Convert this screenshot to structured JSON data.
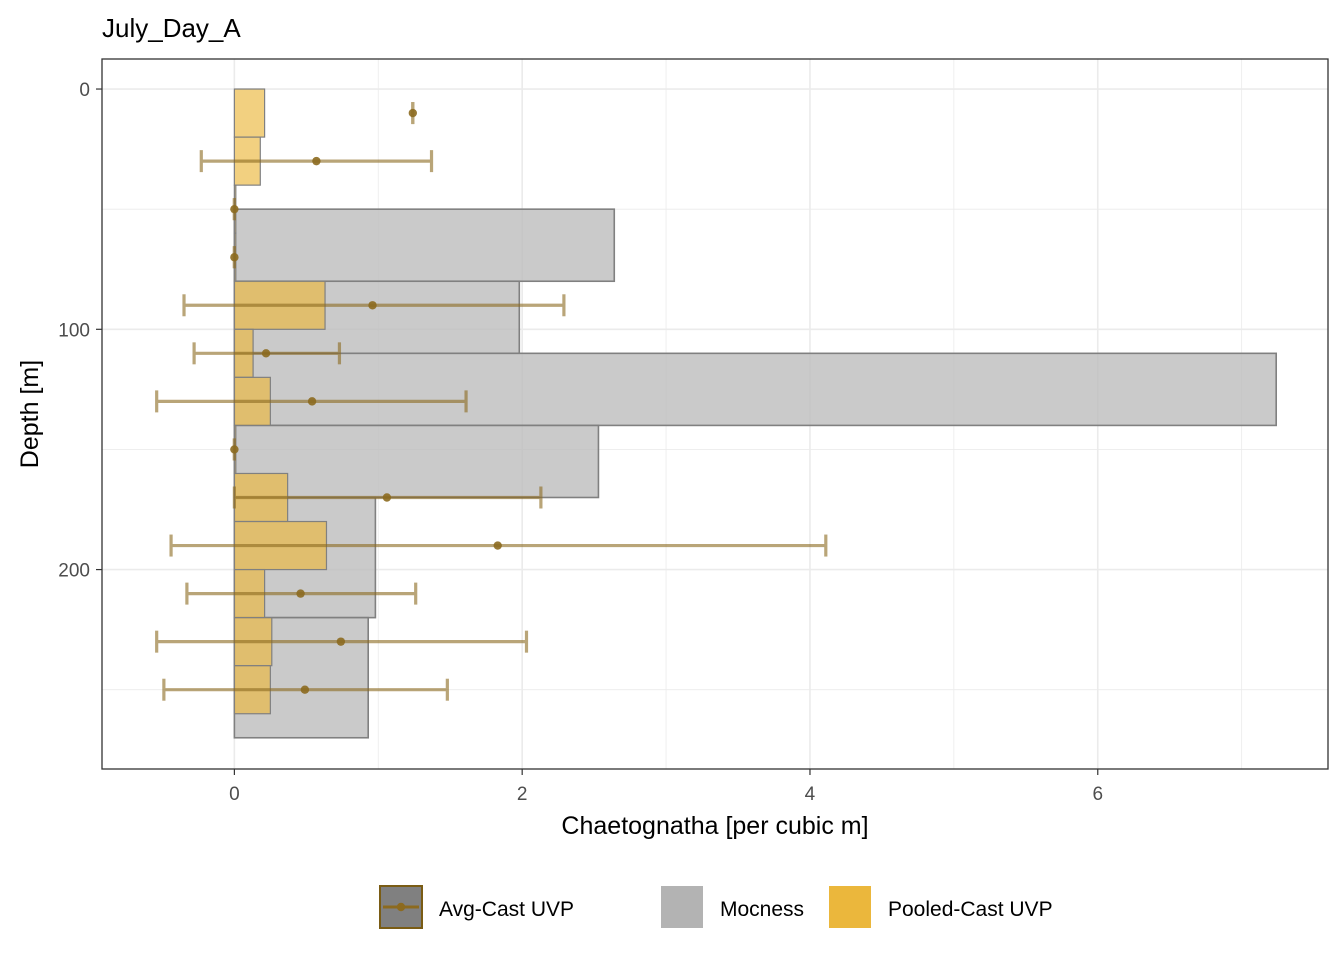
{
  "chart_data": {
    "type": "bar",
    "orientation": "horizontal",
    "title": "July_Day_A",
    "xlabel": "Chaetognatha [per cubic m]",
    "ylabel": "Depth [m]",
    "xlim": [
      -0.92,
      7.6
    ],
    "ylim": [
      -12.5,
      283
    ],
    "y_reversed": true,
    "x_ticks": [
      0,
      2,
      4,
      6
    ],
    "y_ticks": [
      0,
      100,
      200
    ],
    "grid": true,
    "legend_position": "bottom",
    "legend": [
      {
        "name": "Avg-Cast UVP",
        "fill": "#808080",
        "stroke": "#7a5c14",
        "kind": "point-line"
      },
      {
        "name": "Mocness",
        "fill": "#b3b3b3",
        "kind": "fill"
      },
      {
        "name": "Pooled-Cast UVP",
        "fill": "#ebb73c",
        "kind": "fill"
      }
    ],
    "colors": {
      "mocness_fill": "#bdbdbd",
      "mocness_stroke": "#808080",
      "pooled_fill": "#ebb73c",
      "avg_color": "#8c6a1f",
      "grid": "#ebebeb",
      "panel_border": "#333333"
    },
    "series": [
      {
        "name": "Mocness",
        "bars": [
          {
            "depth_top": 50,
            "depth_bottom": 80,
            "value": 2.64
          },
          {
            "depth_top": 80,
            "depth_bottom": 110,
            "value": 1.98
          },
          {
            "depth_top": 110,
            "depth_bottom": 140,
            "value": 7.24
          },
          {
            "depth_top": 140,
            "depth_bottom": 170,
            "value": 2.53
          },
          {
            "depth_top": 170,
            "depth_bottom": 220,
            "value": 0.98
          },
          {
            "depth_top": 220,
            "depth_bottom": 270,
            "value": 0.93
          }
        ]
      },
      {
        "name": "Pooled-Cast UVP",
        "bars": [
          {
            "depth_top": 0,
            "depth_bottom": 20,
            "value": 0.21
          },
          {
            "depth_top": 20,
            "depth_bottom": 40,
            "value": 0.18
          },
          {
            "depth_top": 40,
            "depth_bottom": 60,
            "value": 0.01
          },
          {
            "depth_top": 60,
            "depth_bottom": 80,
            "value": 0.01
          },
          {
            "depth_top": 80,
            "depth_bottom": 100,
            "value": 0.63
          },
          {
            "depth_top": 100,
            "depth_bottom": 120,
            "value": 0.13
          },
          {
            "depth_top": 120,
            "depth_bottom": 140,
            "value": 0.25
          },
          {
            "depth_top": 140,
            "depth_bottom": 160,
            "value": 0.01
          },
          {
            "depth_top": 160,
            "depth_bottom": 180,
            "value": 0.37
          },
          {
            "depth_top": 180,
            "depth_bottom": 200,
            "value": 0.64
          },
          {
            "depth_top": 200,
            "depth_bottom": 220,
            "value": 0.21
          },
          {
            "depth_top": 220,
            "depth_bottom": 240,
            "value": 0.26
          },
          {
            "depth_top": 240,
            "depth_bottom": 260,
            "value": 0.25
          }
        ]
      },
      {
        "name": "Avg-Cast UVP",
        "points": [
          {
            "depth": 10,
            "mean": 1.24,
            "lo": 1.24,
            "hi": 1.24
          },
          {
            "depth": 30,
            "mean": 0.57,
            "lo": -0.23,
            "hi": 1.37
          },
          {
            "depth": 50,
            "mean": 0.0,
            "lo": 0.0,
            "hi": 0.0
          },
          {
            "depth": 70,
            "mean": 0.0,
            "lo": 0.0,
            "hi": 0.0
          },
          {
            "depth": 90,
            "mean": 0.96,
            "lo": -0.35,
            "hi": 2.29
          },
          {
            "depth": 110,
            "mean": 0.22,
            "lo": -0.28,
            "hi": 0.73
          },
          {
            "depth": 130,
            "mean": 0.54,
            "lo": -0.54,
            "hi": 1.61
          },
          {
            "depth": 150,
            "mean": 0.0,
            "lo": 0.0,
            "hi": 0.0
          },
          {
            "depth": 170,
            "mean": 1.06,
            "lo": 0.0,
            "hi": 2.13
          },
          {
            "depth": 190,
            "mean": 1.83,
            "lo": -0.44,
            "hi": 4.11
          },
          {
            "depth": 210,
            "mean": 0.46,
            "lo": -0.33,
            "hi": 1.26
          },
          {
            "depth": 230,
            "mean": 0.74,
            "lo": -0.54,
            "hi": 2.03
          },
          {
            "depth": 250,
            "mean": 0.49,
            "lo": -0.49,
            "hi": 1.48
          }
        ]
      }
    ]
  }
}
